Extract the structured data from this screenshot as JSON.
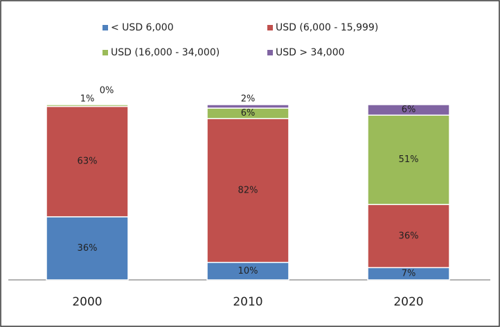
{
  "chart_data": {
    "type": "stacked_bar",
    "categories": [
      "2000",
      "2010",
      "2020"
    ],
    "series": [
      {
        "name": "< USD 6,000",
        "color": "#4f81bd",
        "values": [
          36,
          10,
          7
        ],
        "value_labels": [
          "36%",
          "10%",
          "7%"
        ]
      },
      {
        "name": "USD (6,000 - 15,999)",
        "color": "#c0504d",
        "values": [
          63,
          82,
          36
        ],
        "value_labels": [
          "63%",
          "82%",
          "36%"
        ]
      },
      {
        "name": "USD (16,000 - 34,000)",
        "color": "#9bbb59",
        "values": [
          1,
          6,
          51
        ],
        "value_labels": [
          "1%",
          "6%",
          "51%"
        ]
      },
      {
        "name": "USD > 34,000",
        "color": "#8064a2",
        "values": [
          0,
          2,
          6
        ],
        "value_labels": [
          "0%",
          "2%",
          "6%"
        ]
      }
    ]
  }
}
